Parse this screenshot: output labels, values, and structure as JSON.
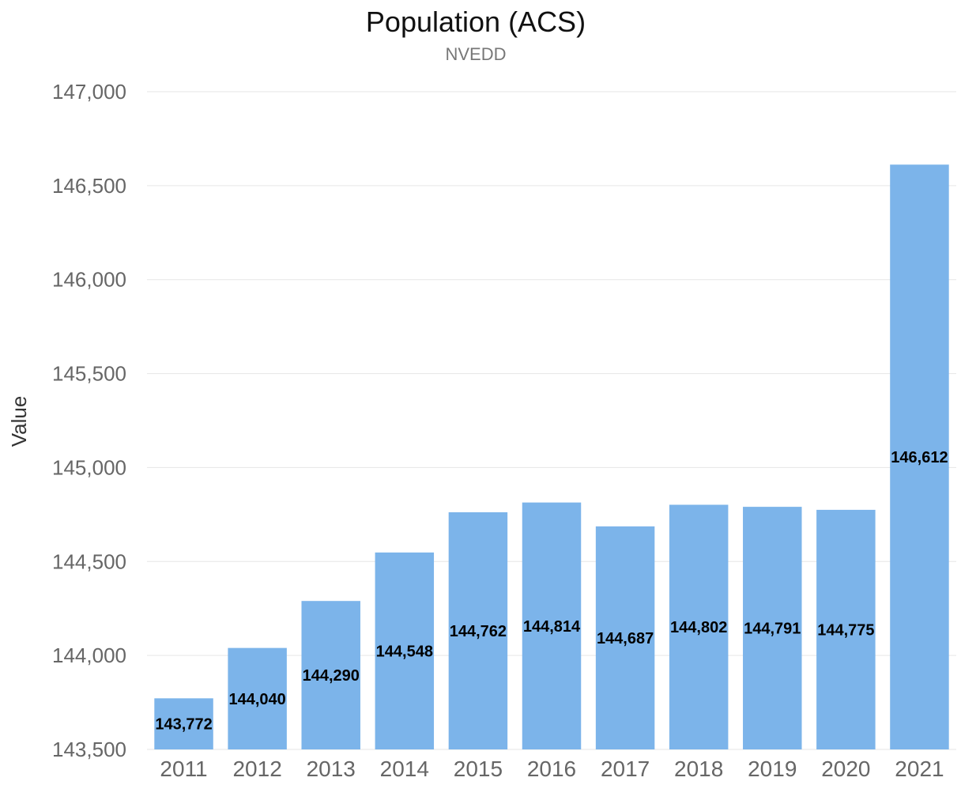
{
  "chart_data": {
    "type": "bar",
    "title": "Population (ACS)",
    "subtitle": "NVEDD",
    "xlabel": "",
    "ylabel": "Value",
    "categories": [
      "2011",
      "2012",
      "2013",
      "2014",
      "2015",
      "2016",
      "2017",
      "2018",
      "2019",
      "2020",
      "2021"
    ],
    "series": [
      {
        "values": [
          143772,
          144040,
          144290,
          144548,
          144762,
          144814,
          144687,
          144802,
          144791,
          144775,
          146612
        ],
        "data_labels": [
          "143,772",
          "144,040",
          "144,290",
          "144,548",
          "144,762",
          "144,814",
          "144,687",
          "144,802",
          "144,791",
          "144,775",
          "146,612"
        ],
        "color": "#7cb4ea"
      }
    ],
    "ylim": [
      143500,
      147000
    ],
    "yticks": [
      143500,
      144000,
      144500,
      145000,
      145500,
      146000,
      146500,
      147000
    ],
    "ytick_labels": [
      "143,500",
      "144,000",
      "144,500",
      "145,000",
      "145,500",
      "146,000",
      "146,500",
      "147,000"
    ],
    "grid": true,
    "legend": "none"
  },
  "colors": {
    "bar": "#7cb4ea",
    "grid": "#e6e6e6",
    "title": "#111111",
    "subtitle": "#777777",
    "axis_text": "#666666",
    "data_label": "#000000"
  }
}
